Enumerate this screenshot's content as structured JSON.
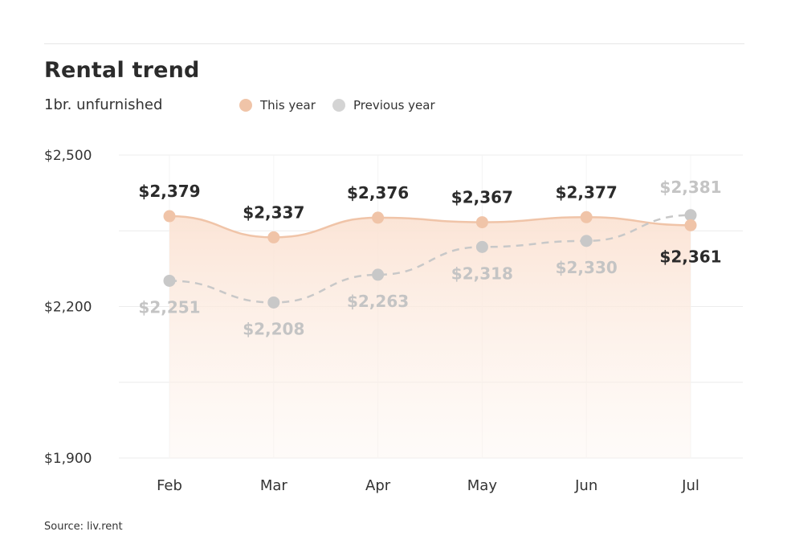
{
  "title": "Rental trend",
  "subtitle": "1br. unfurnished",
  "source": "Source: liv.rent",
  "legend": [
    {
      "label": "This year",
      "color": "#f0c4a8"
    },
    {
      "label": "Previous year",
      "color": "#d4d4d4"
    }
  ],
  "chart_data": {
    "type": "line",
    "title": "Rental trend",
    "subtitle": "1br. unfurnished",
    "categories": [
      "Feb",
      "Mar",
      "Apr",
      "May",
      "Jun",
      "Jul"
    ],
    "series": [
      {
        "name": "This year",
        "values": [
          2379,
          2337,
          2376,
          2367,
          2377,
          2361
        ],
        "labels": [
          "$2,379",
          "$2,337",
          "$2,376",
          "$2,367",
          "$2,377",
          "$2,361"
        ],
        "color": "#f0c4a8",
        "style": "solid-area"
      },
      {
        "name": "Previous year",
        "values": [
          2251,
          2208,
          2263,
          2318,
          2330,
          2381
        ],
        "labels": [
          "$2,251",
          "$2,208",
          "$2,263",
          "$2,318",
          "$2,330",
          "$2,381"
        ],
        "color": "#c8c8c8",
        "style": "dashed"
      }
    ],
    "yticks": [
      "$2,500",
      "$2,200",
      "$1,900"
    ],
    "ylim": [
      1900,
      2500
    ],
    "grid": true
  }
}
